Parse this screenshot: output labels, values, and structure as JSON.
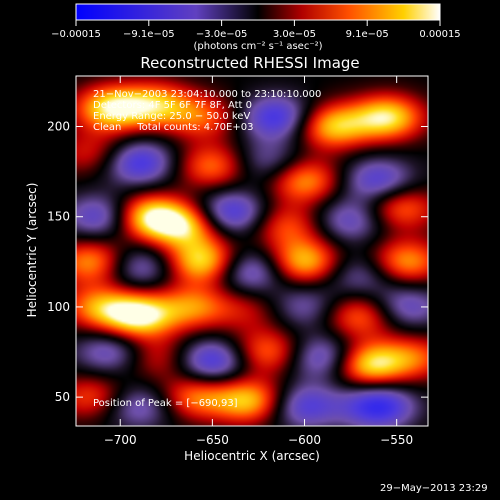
{
  "chart_data": {
    "type": "heatmap",
    "title": "Reconstructed RHESSI Image",
    "xlabel": "Heliocentric X (arcsec)",
    "ylabel": "Heliocentric Y (arcsec)",
    "xlim": [
      -724,
      -533
    ],
    "ylim": [
      34,
      228
    ],
    "x_ticks": [
      -700,
      -650,
      -600,
      -550
    ],
    "x_tick_labels": [
      "−700",
      "−650",
      "−600",
      "−550"
    ],
    "y_ticks": [
      50,
      100,
      150,
      200
    ],
    "y_tick_labels": [
      "50",
      "100",
      "150",
      "200"
    ],
    "colorbar": {
      "colormap": "rhessi-blue-black-red-yellow-white",
      "range": [
        -0.00015,
        0.00015
      ],
      "tick_labels": [
        "−0.00015",
        "−9.1e−05",
        "−3.0e−05",
        "3.0e−05",
        "9.1e−05",
        "0.00015"
      ],
      "unit_label": "(photons cm⁻² s⁻¹ asec⁻²)"
    },
    "blobs": [
      {
        "x": -705,
        "y": 210,
        "v": 0.9
      },
      {
        "x": -680,
        "y": 212,
        "v": 0.7
      },
      {
        "x": -655,
        "y": 205,
        "v": 0.5
      },
      {
        "x": -615,
        "y": 205,
        "v": -0.7
      },
      {
        "x": -585,
        "y": 200,
        "v": 0.8
      },
      {
        "x": -555,
        "y": 205,
        "v": 0.9
      },
      {
        "x": -715,
        "y": 185,
        "v": 0.4
      },
      {
        "x": -690,
        "y": 180,
        "v": -0.7
      },
      {
        "x": -650,
        "y": 178,
        "v": 0.6
      },
      {
        "x": -620,
        "y": 180,
        "v": -0.4
      },
      {
        "x": -600,
        "y": 170,
        "v": 0.7
      },
      {
        "x": -560,
        "y": 170,
        "v": -0.6
      },
      {
        "x": -710,
        "y": 150,
        "v": -0.6
      },
      {
        "x": -685,
        "y": 150,
        "v": 0.9
      },
      {
        "x": -665,
        "y": 145,
        "v": 0.8
      },
      {
        "x": -640,
        "y": 152,
        "v": -0.7
      },
      {
        "x": -610,
        "y": 145,
        "v": 0.5
      },
      {
        "x": -575,
        "y": 148,
        "v": -0.5
      },
      {
        "x": -548,
        "y": 155,
        "v": 0.6
      },
      {
        "x": -715,
        "y": 125,
        "v": 0.7
      },
      {
        "x": -690,
        "y": 122,
        "v": -0.5
      },
      {
        "x": -655,
        "y": 125,
        "v": 0.9
      },
      {
        "x": -630,
        "y": 120,
        "v": -0.6
      },
      {
        "x": -600,
        "y": 125,
        "v": 0.8
      },
      {
        "x": -570,
        "y": 118,
        "v": -0.4
      },
      {
        "x": -545,
        "y": 125,
        "v": 0.7
      },
      {
        "x": -712,
        "y": 100,
        "v": 0.6
      },
      {
        "x": -690,
        "y": 95,
        "v": 1.0
      },
      {
        "x": -660,
        "y": 100,
        "v": 0.6
      },
      {
        "x": -630,
        "y": 98,
        "v": 0.3
      },
      {
        "x": -600,
        "y": 100,
        "v": -0.4
      },
      {
        "x": -570,
        "y": 95,
        "v": 0.6
      },
      {
        "x": -545,
        "y": 100,
        "v": -0.5
      },
      {
        "x": -705,
        "y": 75,
        "v": -0.5
      },
      {
        "x": -680,
        "y": 72,
        "v": 0.4
      },
      {
        "x": -650,
        "y": 70,
        "v": -0.7
      },
      {
        "x": -620,
        "y": 75,
        "v": 0.6
      },
      {
        "x": -590,
        "y": 72,
        "v": -0.6
      },
      {
        "x": -565,
        "y": 68,
        "v": 0.9
      },
      {
        "x": -540,
        "y": 72,
        "v": 0.5
      },
      {
        "x": -715,
        "y": 50,
        "v": 0.5
      },
      {
        "x": -690,
        "y": 45,
        "v": -0.5
      },
      {
        "x": -660,
        "y": 50,
        "v": 0.6
      },
      {
        "x": -630,
        "y": 48,
        "v": 0.8
      },
      {
        "x": -600,
        "y": 45,
        "v": -0.6
      },
      {
        "x": -560,
        "y": 45,
        "v": -0.8
      }
    ]
  },
  "overlay": {
    "line1": "21−Nov−2003 23:04:10.000 to 23:10:10.000",
    "line2": "Detectors: 4F 5F 6F 7F 8F, Att 0",
    "line3": "Energy Range: 25.0 − 50.0 keV",
    "line4": "Clean     Total counts: 4.70E+03",
    "peak": "Position of Peak = [−690,93]"
  },
  "footer": {
    "date": "29−May−2013 23:29"
  },
  "colors": {
    "background": "#000000",
    "foreground": "#ffffff"
  }
}
